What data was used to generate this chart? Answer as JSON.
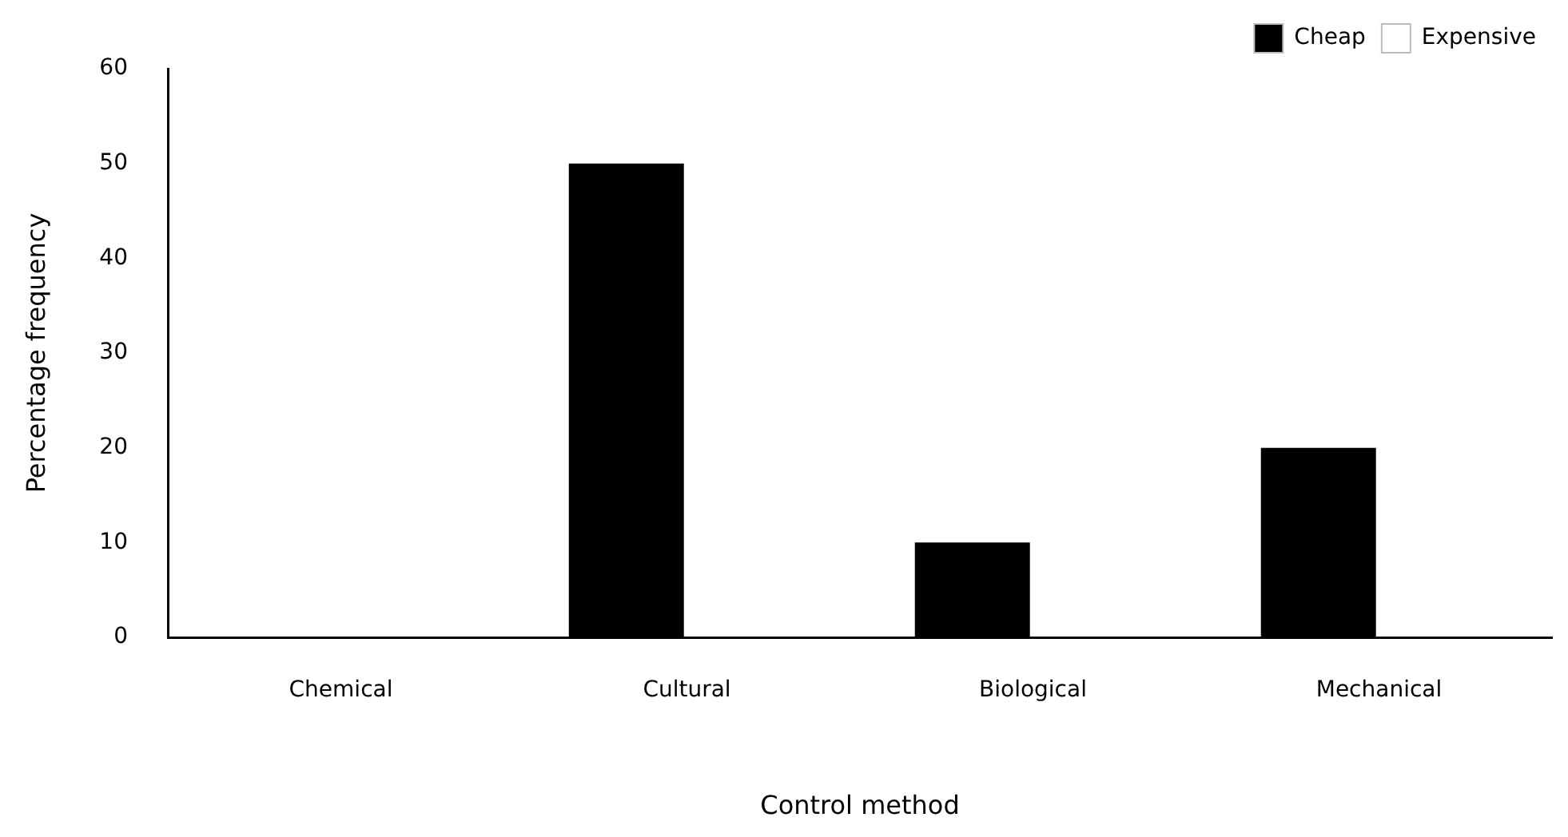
{
  "chart_data": {
    "type": "bar",
    "xlabel": "Control method",
    "ylabel": "Percentage frequency",
    "categories": [
      "Chemical",
      "Cultural",
      "Biological",
      "Mechanical"
    ],
    "series": [
      {
        "name": "Cheap",
        "color": "#000000",
        "values": [
          0,
          50,
          10,
          20
        ]
      },
      {
        "name": "Expensive",
        "color": "#ffffff",
        "values": [
          null,
          null,
          null,
          null
        ]
      }
    ],
    "ylim": [
      0,
      60
    ],
    "yticks": [
      0,
      10,
      20,
      30,
      40,
      50,
      60
    ],
    "grid": false,
    "legend": "top right"
  }
}
